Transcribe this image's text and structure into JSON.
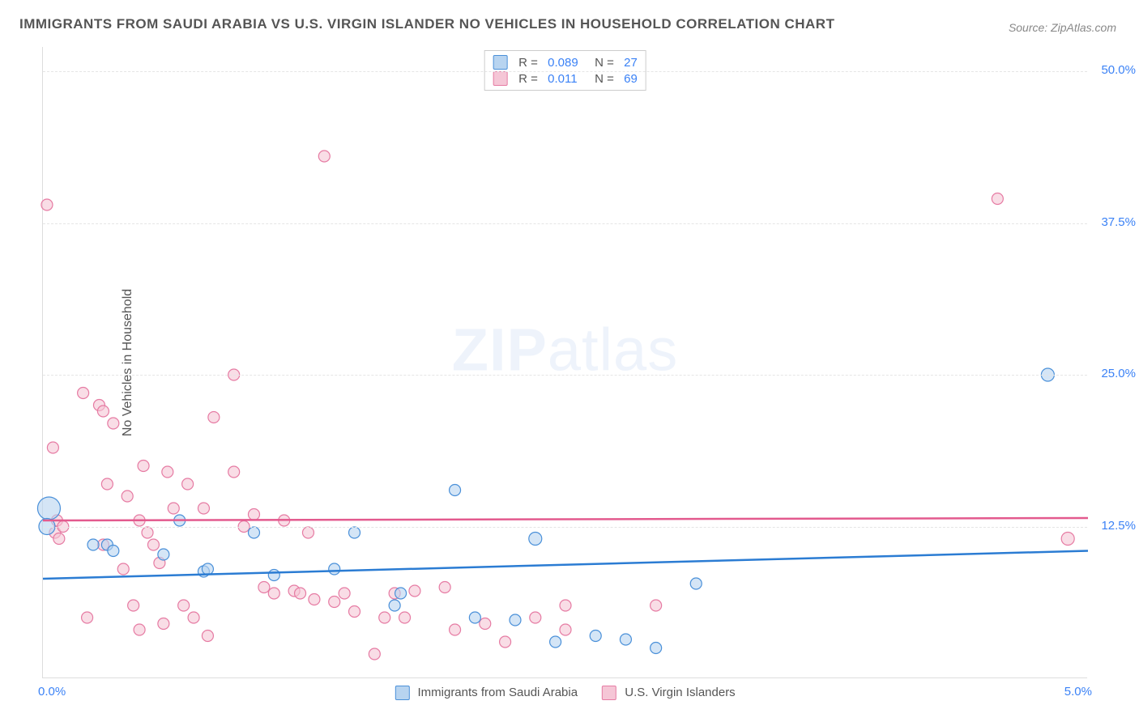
{
  "title": "IMMIGRANTS FROM SAUDI ARABIA VS U.S. VIRGIN ISLANDER NO VEHICLES IN HOUSEHOLD CORRELATION CHART",
  "source": "Source: ZipAtlas.com",
  "watermark_part1": "ZIP",
  "watermark_part2": "atlas",
  "y_axis": {
    "label": "No Vehicles in Household",
    "ticks": [
      "12.5%",
      "25.0%",
      "37.5%",
      "50.0%"
    ],
    "min": 0,
    "max": 52
  },
  "x_axis": {
    "tick_left": "0.0%",
    "tick_right": "5.0%",
    "min": 0,
    "max": 5.2
  },
  "series": [
    {
      "name": "Immigrants from Saudi Arabia",
      "color_fill": "#b8d4f0",
      "color_stroke": "#4a90d9",
      "r_label": "R =",
      "r_value": "0.089",
      "n_label": "N =",
      "n_value": "27",
      "trend": {
        "y_start": 8.2,
        "y_end": 10.5,
        "stroke": "#2b7cd3",
        "width": 2.5
      },
      "points": [
        {
          "x": 0.03,
          "y": 14,
          "r": 14
        },
        {
          "x": 0.02,
          "y": 12.5,
          "r": 10
        },
        {
          "x": 0.25,
          "y": 11,
          "r": 7
        },
        {
          "x": 0.32,
          "y": 11,
          "r": 7
        },
        {
          "x": 0.35,
          "y": 10.5,
          "r": 7
        },
        {
          "x": 0.6,
          "y": 10.2,
          "r": 7
        },
        {
          "x": 0.68,
          "y": 13,
          "r": 7
        },
        {
          "x": 0.8,
          "y": 8.8,
          "r": 7
        },
        {
          "x": 0.82,
          "y": 9.0,
          "r": 7
        },
        {
          "x": 1.05,
          "y": 12,
          "r": 7
        },
        {
          "x": 1.15,
          "y": 8.5,
          "r": 7
        },
        {
          "x": 1.45,
          "y": 9.0,
          "r": 7
        },
        {
          "x": 1.55,
          "y": 12,
          "r": 7
        },
        {
          "x": 1.75,
          "y": 6,
          "r": 7
        },
        {
          "x": 1.78,
          "y": 7,
          "r": 7
        },
        {
          "x": 2.05,
          "y": 15.5,
          "r": 7
        },
        {
          "x": 2.15,
          "y": 5,
          "r": 7
        },
        {
          "x": 2.35,
          "y": 4.8,
          "r": 7
        },
        {
          "x": 2.45,
          "y": 11.5,
          "r": 8
        },
        {
          "x": 2.55,
          "y": 3,
          "r": 7
        },
        {
          "x": 2.75,
          "y": 3.5,
          "r": 7
        },
        {
          "x": 2.9,
          "y": 3.2,
          "r": 7
        },
        {
          "x": 3.05,
          "y": 2.5,
          "r": 7
        },
        {
          "x": 3.25,
          "y": 7.8,
          "r": 7
        },
        {
          "x": 5.0,
          "y": 25,
          "r": 8
        }
      ]
    },
    {
      "name": "U.S. Virgin Islanders",
      "color_fill": "#f5c6d6",
      "color_stroke": "#e67ba3",
      "r_label": "R =",
      "r_value": "0.011",
      "n_label": "N =",
      "n_value": "69",
      "trend": {
        "y_start": 13.0,
        "y_end": 13.2,
        "stroke": "#e35a8e",
        "width": 2.5
      },
      "points": [
        {
          "x": 0.02,
          "y": 39,
          "r": 7
        },
        {
          "x": 0.05,
          "y": 19,
          "r": 7
        },
        {
          "x": 0.06,
          "y": 12,
          "r": 7
        },
        {
          "x": 0.07,
          "y": 13,
          "r": 7
        },
        {
          "x": 0.08,
          "y": 11.5,
          "r": 7
        },
        {
          "x": 0.1,
          "y": 12.5,
          "r": 7
        },
        {
          "x": 0.2,
          "y": 23.5,
          "r": 7
        },
        {
          "x": 0.22,
          "y": 5,
          "r": 7
        },
        {
          "x": 0.28,
          "y": 22.5,
          "r": 7
        },
        {
          "x": 0.3,
          "y": 22,
          "r": 7
        },
        {
          "x": 0.3,
          "y": 11,
          "r": 7
        },
        {
          "x": 0.32,
          "y": 16,
          "r": 7
        },
        {
          "x": 0.35,
          "y": 21,
          "r": 7
        },
        {
          "x": 0.4,
          "y": 9,
          "r": 7
        },
        {
          "x": 0.42,
          "y": 15,
          "r": 7
        },
        {
          "x": 0.45,
          "y": 6,
          "r": 7
        },
        {
          "x": 0.48,
          "y": 13,
          "r": 7
        },
        {
          "x": 0.48,
          "y": 4,
          "r": 7
        },
        {
          "x": 0.5,
          "y": 17.5,
          "r": 7
        },
        {
          "x": 0.52,
          "y": 12,
          "r": 7
        },
        {
          "x": 0.55,
          "y": 11,
          "r": 7
        },
        {
          "x": 0.58,
          "y": 9.5,
          "r": 7
        },
        {
          "x": 0.6,
          "y": 4.5,
          "r": 7
        },
        {
          "x": 0.62,
          "y": 17,
          "r": 7
        },
        {
          "x": 0.65,
          "y": 14,
          "r": 7
        },
        {
          "x": 0.7,
          "y": 6,
          "r": 7
        },
        {
          "x": 0.72,
          "y": 16,
          "r": 7
        },
        {
          "x": 0.75,
          "y": 5,
          "r": 7
        },
        {
          "x": 0.8,
          "y": 14,
          "r": 7
        },
        {
          "x": 0.82,
          "y": 3.5,
          "r": 7
        },
        {
          "x": 0.85,
          "y": 21.5,
          "r": 7
        },
        {
          "x": 0.95,
          "y": 25,
          "r": 7
        },
        {
          "x": 0.95,
          "y": 17,
          "r": 7
        },
        {
          "x": 1.0,
          "y": 12.5,
          "r": 7
        },
        {
          "x": 1.05,
          "y": 13.5,
          "r": 7
        },
        {
          "x": 1.1,
          "y": 7.5,
          "r": 7
        },
        {
          "x": 1.15,
          "y": 7.0,
          "r": 7
        },
        {
          "x": 1.2,
          "y": 13,
          "r": 7
        },
        {
          "x": 1.25,
          "y": 7.2,
          "r": 7
        },
        {
          "x": 1.28,
          "y": 7.0,
          "r": 7
        },
        {
          "x": 1.32,
          "y": 12,
          "r": 7
        },
        {
          "x": 1.35,
          "y": 6.5,
          "r": 7
        },
        {
          "x": 1.4,
          "y": 43,
          "r": 7
        },
        {
          "x": 1.45,
          "y": 6.3,
          "r": 7
        },
        {
          "x": 1.5,
          "y": 7,
          "r": 7
        },
        {
          "x": 1.55,
          "y": 5.5,
          "r": 7
        },
        {
          "x": 1.65,
          "y": 2,
          "r": 7
        },
        {
          "x": 1.7,
          "y": 5,
          "r": 7
        },
        {
          "x": 1.75,
          "y": 7,
          "r": 7
        },
        {
          "x": 1.8,
          "y": 5,
          "r": 7
        },
        {
          "x": 1.85,
          "y": 7.2,
          "r": 7
        },
        {
          "x": 2.0,
          "y": 7.5,
          "r": 7
        },
        {
          "x": 2.05,
          "y": 4,
          "r": 7
        },
        {
          "x": 2.2,
          "y": 4.5,
          "r": 7
        },
        {
          "x": 2.3,
          "y": 3,
          "r": 7
        },
        {
          "x": 2.45,
          "y": 5,
          "r": 7
        },
        {
          "x": 2.6,
          "y": 6,
          "r": 7
        },
        {
          "x": 2.6,
          "y": 4,
          "r": 7
        },
        {
          "x": 3.05,
          "y": 6,
          "r": 7
        },
        {
          "x": 4.75,
          "y": 39.5,
          "r": 7
        },
        {
          "x": 5.1,
          "y": 11.5,
          "r": 8
        }
      ]
    }
  ]
}
